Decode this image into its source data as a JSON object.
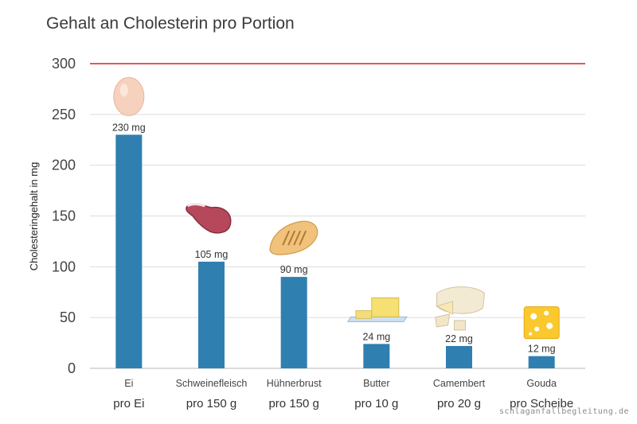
{
  "watermark": "schlaganfallbegleitung.de",
  "colors": {
    "bar": "#2f7fb0",
    "limit": "#e05a5a",
    "grid": "#dcdcdc",
    "text": "#3a3a3a"
  },
  "chart_data": {
    "type": "bar",
    "title": "Gehalt an Cholesterin pro Portion",
    "xlabel": "",
    "ylabel": "Cholesteringehalt in mg",
    "ylim": [
      0,
      300
    ],
    "yticks": [
      0,
      50,
      100,
      150,
      200,
      250,
      300
    ],
    "grid": true,
    "limit_line": 300,
    "categories": [
      "Ei",
      "Schweinefleisch",
      "Hühnerbrust",
      "Butter",
      "Camembert",
      "Gouda"
    ],
    "portions": [
      "pro Ei",
      "pro 150 g",
      "pro 150 g",
      "pro 10 g",
      "pro 20 g",
      "pro Scheibe"
    ],
    "values": [
      230,
      105,
      90,
      24,
      22,
      12
    ],
    "value_labels": [
      "230 mg",
      "105 mg",
      "90 mg",
      "24 mg",
      "22 mg",
      "12 mg"
    ],
    "icons": [
      "egg-icon",
      "pork-chop-icon",
      "chicken-breast-icon",
      "butter-icon",
      "camembert-icon",
      "gouda-icon"
    ]
  }
}
